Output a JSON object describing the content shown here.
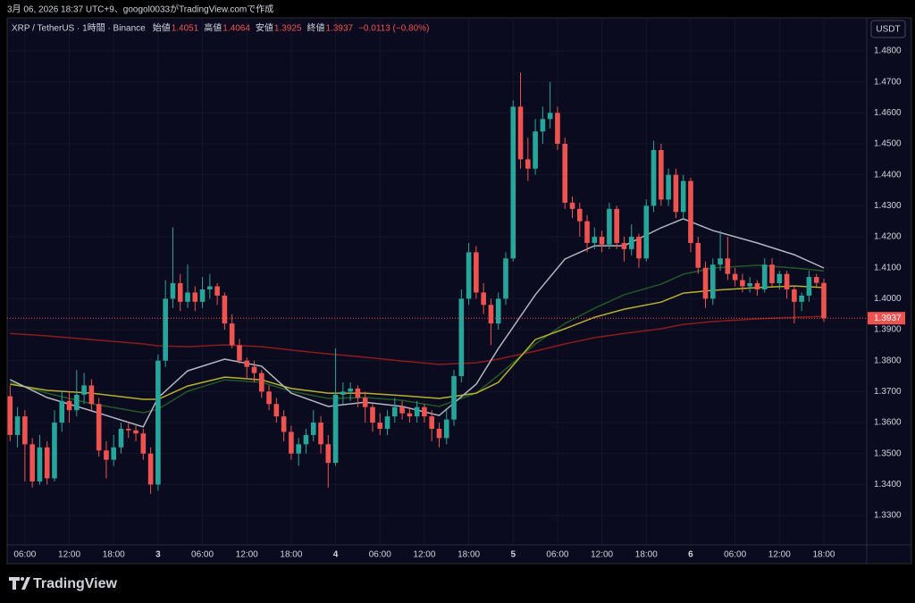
{
  "chart_data": {
    "type": "candlestick",
    "caption": "3月 06, 2026 18:37 UTC+9、googol0033がTradingView.comで作成",
    "symbol": "XRP / TetherUS · 1時間 · Binance",
    "ohlc_labels": [
      "始値",
      "高値",
      "安値",
      "終値"
    ],
    "change": "−0.0113 (−0.80%)",
    "currency": "USDT",
    "brand": "TradingView",
    "up_color": "#26a69a",
    "down_color": "#ef5350",
    "grid": true,
    "ylim": [
      1.3205,
      1.4849
    ],
    "yticks": [
      {
        "value": 1.33,
        "label": "1.3300"
      },
      {
        "value": 1.34,
        "label": "1.3400"
      },
      {
        "value": 1.35,
        "label": "1.3500"
      },
      {
        "value": 1.36,
        "label": "1.3600"
      },
      {
        "value": 1.37,
        "label": "1.3700"
      },
      {
        "value": 1.38,
        "label": "1.3800"
      },
      {
        "value": 1.39,
        "label": "1.3900"
      },
      {
        "value": 1.4,
        "label": "1.4000"
      },
      {
        "value": 1.41,
        "label": "1.4100"
      },
      {
        "value": 1.42,
        "label": "1.4200"
      },
      {
        "value": 1.43,
        "label": "1.4300"
      },
      {
        "value": 1.44,
        "label": "1.4400"
      },
      {
        "value": 1.45,
        "label": "1.4500"
      },
      {
        "value": 1.46,
        "label": "1.4600"
      },
      {
        "value": 1.47,
        "label": "1.4700"
      },
      {
        "value": 1.48,
        "label": "1.4800"
      }
    ],
    "xlim": [
      -0.4,
      115.8
    ],
    "xticks": [
      {
        "value": 2,
        "label": "06:00"
      },
      {
        "value": 8,
        "label": "12:00"
      },
      {
        "value": 14,
        "label": "18:00"
      },
      {
        "value": 20,
        "label": "3"
      },
      {
        "value": 26,
        "label": "06:00"
      },
      {
        "value": 32,
        "label": "12:00"
      },
      {
        "value": 38,
        "label": "18:00"
      },
      {
        "value": 44,
        "label": "4"
      },
      {
        "value": 50,
        "label": "06:00"
      },
      {
        "value": 56,
        "label": "12:00"
      },
      {
        "value": 62,
        "label": "18:00"
      },
      {
        "value": 68,
        "label": "5"
      },
      {
        "value": 74,
        "label": "06:00"
      },
      {
        "value": 80,
        "label": "12:00"
      },
      {
        "value": 86,
        "label": "18:00"
      },
      {
        "value": 92,
        "label": "6"
      },
      {
        "value": 98,
        "label": "06:00"
      },
      {
        "value": 104,
        "label": "12:00"
      },
      {
        "value": 110,
        "label": "18:00"
      }
    ],
    "ohlc": [
      [
        1.3685,
        1.372,
        1.354,
        1.356
      ],
      [
        1.356,
        1.365,
        1.352,
        1.362
      ],
      [
        1.362,
        1.364,
        1.341,
        1.353
      ],
      [
        1.353,
        1.355,
        1.339,
        1.341
      ],
      [
        1.341,
        1.356,
        1.34,
        1.352
      ],
      [
        1.352,
        1.354,
        1.34,
        1.342
      ],
      [
        1.342,
        1.364,
        1.341,
        1.36
      ],
      [
        1.36,
        1.37,
        1.357,
        1.367
      ],
      [
        1.367,
        1.37,
        1.36,
        1.364
      ],
      [
        1.364,
        1.377,
        1.362,
        1.369
      ],
      [
        1.369,
        1.376,
        1.366,
        1.372
      ],
      [
        1.372,
        1.374,
        1.364,
        1.366
      ],
      [
        1.366,
        1.368,
        1.349,
        1.351
      ],
      [
        1.351,
        1.354,
        1.342,
        1.348
      ],
      [
        1.348,
        1.356,
        1.346,
        1.352
      ],
      [
        1.352,
        1.36,
        1.35,
        1.358
      ],
      [
        1.358,
        1.36,
        1.355,
        1.3575
      ],
      [
        1.3575,
        1.359,
        1.354,
        1.3565
      ],
      [
        1.3565,
        1.358,
        1.348,
        1.35
      ],
      [
        1.35,
        1.352,
        1.337,
        1.34
      ],
      [
        1.34,
        1.382,
        1.338,
        1.38
      ],
      [
        1.38,
        1.406,
        1.378,
        1.4
      ],
      [
        1.4,
        1.423,
        1.397,
        1.405
      ],
      [
        1.405,
        1.408,
        1.396,
        1.399
      ],
      [
        1.399,
        1.411,
        1.397,
        1.402
      ],
      [
        1.402,
        1.404,
        1.396,
        1.399
      ],
      [
        1.399,
        1.407,
        1.397,
        1.403
      ],
      [
        1.403,
        1.408,
        1.4,
        1.404
      ],
      [
        1.404,
        1.405,
        1.398,
        1.401
      ],
      [
        1.401,
        1.402,
        1.39,
        1.392
      ],
      [
        1.392,
        1.395,
        1.384,
        1.385
      ],
      [
        1.385,
        1.387,
        1.379,
        1.38
      ],
      [
        1.38,
        1.381,
        1.374,
        1.378
      ],
      [
        1.378,
        1.38,
        1.373,
        1.376
      ],
      [
        1.376,
        1.377,
        1.368,
        1.37
      ],
      [
        1.37,
        1.372,
        1.364,
        1.366
      ],
      [
        1.366,
        1.368,
        1.36,
        1.362
      ],
      [
        1.362,
        1.364,
        1.354,
        1.357
      ],
      [
        1.357,
        1.359,
        1.348,
        1.35
      ],
      [
        1.35,
        1.355,
        1.346,
        1.353
      ],
      [
        1.353,
        1.358,
        1.35,
        1.356
      ],
      [
        1.356,
        1.364,
        1.354,
        1.36
      ],
      [
        1.36,
        1.362,
        1.35,
        1.353
      ],
      [
        1.353,
        1.356,
        1.339,
        1.347
      ],
      [
        1.347,
        1.384,
        1.346,
        1.369
      ],
      [
        1.369,
        1.373,
        1.366,
        1.37
      ],
      [
        1.37,
        1.373,
        1.367,
        1.371
      ],
      [
        1.371,
        1.372,
        1.365,
        1.368
      ],
      [
        1.368,
        1.37,
        1.36,
        1.365
      ],
      [
        1.365,
        1.366,
        1.357,
        1.36
      ],
      [
        1.36,
        1.363,
        1.356,
        1.358
      ],
      [
        1.358,
        1.364,
        1.356,
        1.362
      ],
      [
        1.362,
        1.368,
        1.36,
        1.365
      ],
      [
        1.365,
        1.367,
        1.361,
        1.363
      ],
      [
        1.363,
        1.365,
        1.36,
        1.362
      ],
      [
        1.362,
        1.367,
        1.36,
        1.365
      ],
      [
        1.365,
        1.366,
        1.36,
        1.362
      ],
      [
        1.362,
        1.364,
        1.354,
        1.358
      ],
      [
        1.358,
        1.36,
        1.352,
        1.355
      ],
      [
        1.355,
        1.364,
        1.353,
        1.361
      ],
      [
        1.361,
        1.377,
        1.359,
        1.375
      ],
      [
        1.375,
        1.403,
        1.373,
        1.4
      ],
      [
        1.4,
        1.418,
        1.398,
        1.415
      ],
      [
        1.415,
        1.417,
        1.4,
        1.402
      ],
      [
        1.402,
        1.405,
        1.395,
        1.398
      ],
      [
        1.398,
        1.4,
        1.385,
        1.392
      ],
      [
        1.392,
        1.402,
        1.39,
        1.4
      ],
      [
        1.4,
        1.415,
        1.398,
        1.413
      ],
      [
        1.413,
        1.464,
        1.412,
        1.462
      ],
      [
        1.462,
        1.473,
        1.442,
        1.445
      ],
      [
        1.445,
        1.452,
        1.438,
        1.442
      ],
      [
        1.442,
        1.458,
        1.44,
        1.454
      ],
      [
        1.454,
        1.462,
        1.45,
        1.458
      ],
      [
        1.458,
        1.47,
        1.455,
        1.46
      ],
      [
        1.46,
        1.462,
        1.448,
        1.45
      ],
      [
        1.45,
        1.452,
        1.429,
        1.431
      ],
      [
        1.431,
        1.433,
        1.426,
        1.429
      ],
      [
        1.429,
        1.431,
        1.42,
        1.425
      ],
      [
        1.425,
        1.427,
        1.415,
        1.418
      ],
      [
        1.418,
        1.423,
        1.416,
        1.42
      ],
      [
        1.42,
        1.422,
        1.415,
        1.4175
      ],
      [
        1.4175,
        1.431,
        1.416,
        1.429
      ],
      [
        1.429,
        1.43,
        1.416,
        1.418
      ],
      [
        1.418,
        1.42,
        1.412,
        1.416
      ],
      [
        1.416,
        1.424,
        1.414,
        1.42
      ],
      [
        1.42,
        1.421,
        1.41,
        1.413
      ],
      [
        1.413,
        1.432,
        1.412,
        1.43
      ],
      [
        1.43,
        1.451,
        1.428,
        1.448
      ],
      [
        1.448,
        1.45,
        1.43,
        1.432
      ],
      [
        1.432,
        1.442,
        1.43,
        1.44
      ],
      [
        1.44,
        1.442,
        1.426,
        1.428
      ],
      [
        1.428,
        1.44,
        1.426,
        1.438
      ],
      [
        1.438,
        1.439,
        1.415,
        1.418
      ],
      [
        1.418,
        1.42,
        1.408,
        1.41
      ],
      [
        1.41,
        1.412,
        1.397,
        1.4
      ],
      [
        1.4,
        1.413,
        1.398,
        1.411
      ],
      [
        1.411,
        1.422,
        1.409,
        1.413
      ],
      [
        1.413,
        1.42,
        1.406,
        1.408
      ],
      [
        1.408,
        1.41,
        1.404,
        1.406
      ],
      [
        1.406,
        1.408,
        1.402,
        1.404
      ],
      [
        1.404,
        1.407,
        1.402,
        1.405
      ],
      [
        1.405,
        1.406,
        1.401,
        1.403
      ],
      [
        1.403,
        1.413,
        1.402,
        1.411
      ],
      [
        1.411,
        1.413,
        1.404,
        1.405
      ],
      [
        1.405,
        1.409,
        1.403,
        1.408
      ],
      [
        1.408,
        1.409,
        1.4,
        1.403
      ],
      [
        1.403,
        1.404,
        1.392,
        1.399
      ],
      [
        1.399,
        1.402,
        1.396,
        1.401
      ],
      [
        1.401,
        1.409,
        1.399,
        1.407
      ],
      [
        1.407,
        1.408,
        1.404,
        1.4051
      ],
      [
        1.4051,
        1.4064,
        1.3925,
        1.3937
      ]
    ],
    "series": [
      {
        "color": "#8d1b1b",
        "x": [
          0,
          5,
          11,
          18,
          20,
          24,
          29,
          34,
          38,
          43,
          48,
          53,
          58,
          63,
          66,
          71,
          75,
          79,
          83,
          88,
          91,
          95,
          101,
          106,
          110
        ],
        "values": [
          1.3888,
          1.388,
          1.3868,
          1.3854,
          1.3848,
          1.3845,
          1.3851,
          1.3845,
          1.3834,
          1.3822,
          1.3811,
          1.3799,
          1.3788,
          1.3793,
          1.3805,
          1.3831,
          1.3854,
          1.3874,
          1.3888,
          1.3903,
          1.3917,
          1.3926,
          1.3935,
          1.394,
          1.3943
        ]
      },
      {
        "color": "#1f5a25",
        "x": [
          0,
          5,
          11,
          18,
          20,
          24,
          29,
          34,
          38,
          43,
          48,
          53,
          58,
          63,
          66,
          71,
          75,
          79,
          83,
          88,
          91,
          95,
          101,
          106,
          110
        ],
        "values": [
          1.373,
          1.3695,
          1.3661,
          1.3632,
          1.3643,
          1.3701,
          1.3738,
          1.373,
          1.3701,
          1.3678,
          1.3681,
          1.3672,
          1.3652,
          1.3695,
          1.3753,
          1.3854,
          1.392,
          1.3969,
          1.4013,
          1.4047,
          1.4079,
          1.4099,
          1.4108,
          1.4099,
          1.409
        ]
      },
      {
        "color": "#b8b02c",
        "x": [
          0,
          5,
          11,
          18,
          20,
          24,
          29,
          34,
          38,
          43,
          48,
          53,
          58,
          63,
          66,
          71,
          75,
          79,
          83,
          88,
          91,
          95,
          101,
          106,
          110
        ],
        "values": [
          1.3724,
          1.3704,
          1.3695,
          1.3675,
          1.3675,
          1.3718,
          1.3747,
          1.3738,
          1.371,
          1.3695,
          1.3695,
          1.3687,
          1.3678,
          1.3695,
          1.373,
          1.3868,
          1.3903,
          1.394,
          1.3966,
          1.3989,
          1.4018,
          1.4027,
          1.4036,
          1.4041,
          1.4036
        ]
      },
      {
        "color": "#b2b5be",
        "x": [
          0,
          5,
          11,
          18,
          20,
          24,
          29,
          34,
          38,
          43,
          48,
          53,
          58,
          63,
          66,
          71,
          75,
          79,
          83,
          88,
          91,
          95,
          101,
          106,
          110
        ],
        "values": [
          1.3739,
          1.3681,
          1.3638,
          1.3586,
          1.368,
          1.3767,
          1.3805,
          1.3782,
          1.3695,
          1.3652,
          1.3666,
          1.3652,
          1.3623,
          1.3724,
          1.3839,
          1.4013,
          1.4128,
          1.4171,
          1.4171,
          1.4229,
          1.4258,
          1.422,
          1.418,
          1.4142,
          1.4099
        ]
      }
    ]
  }
}
